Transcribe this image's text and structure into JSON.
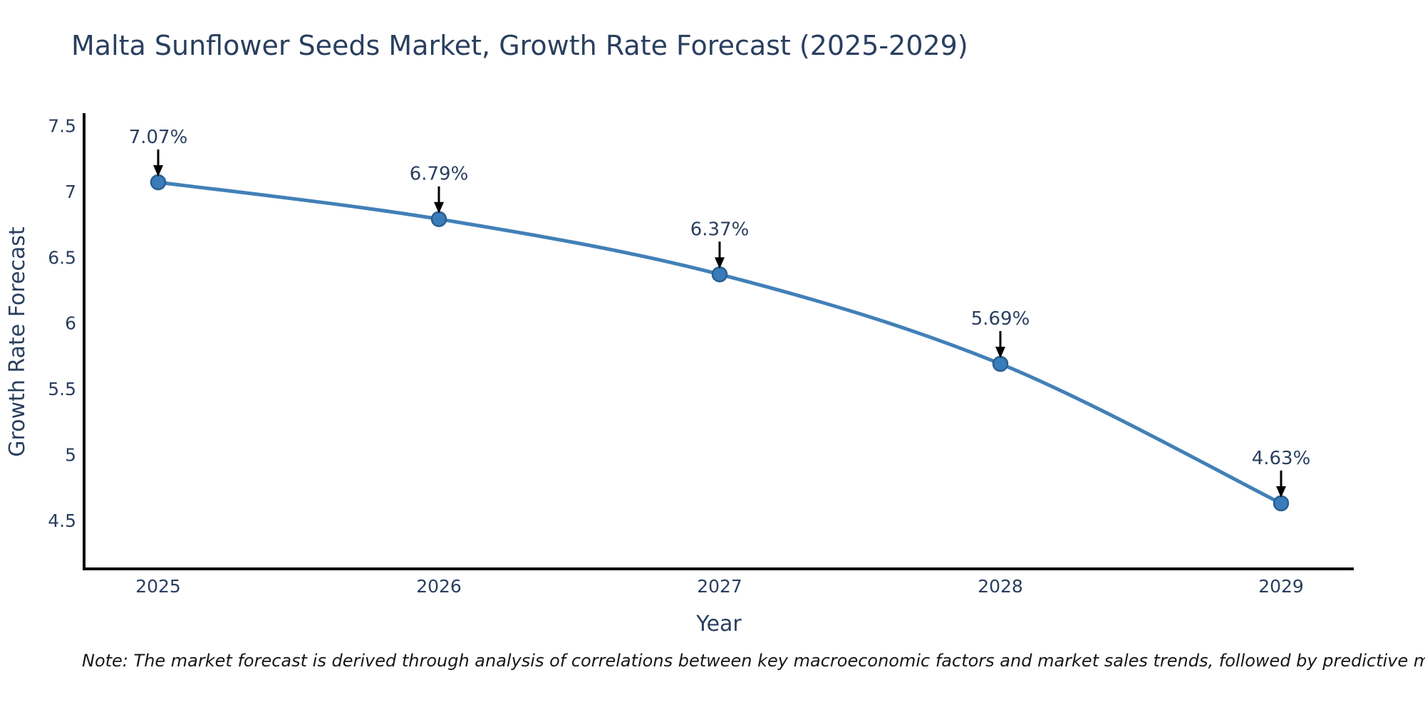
{
  "page": {
    "background": "#ffffff"
  },
  "chart_data": {
    "type": "line",
    "title": "Malta Sunflower Seeds Market, Growth Rate Forecast (2025-2029)",
    "xlabel": "Year",
    "ylabel": "Growth Rate Forecast",
    "categories": [
      "2025",
      "2026",
      "2027",
      "2028",
      "2029"
    ],
    "series": [
      {
        "name": "Growth Rate Forecast",
        "values": [
          7.07,
          6.79,
          6.37,
          5.69,
          4.63
        ],
        "point_labels": [
          "7.07%",
          "6.79%",
          "6.37%",
          "5.69%",
          "4.63%"
        ]
      }
    ],
    "y_ticks": [
      4.5,
      5,
      5.5,
      6,
      6.5,
      7,
      7.5
    ],
    "ylim": [
      4.1,
      7.58
    ],
    "grid": false,
    "legend_position": "none",
    "line_shape": "spline",
    "colors": {
      "line": "#4280b7",
      "marker_fill": "#3a7cba",
      "marker_edge": "#2b5f8e",
      "axis_line": "#000000",
      "text": "#2a3f5f",
      "annotation_arrow": "#000000"
    }
  },
  "note": {
    "text": "Note: The market forecast is derived through analysis of correlations between key macroeconomic factors and market sales trends, followed by predictive modeling to project future sales"
  }
}
